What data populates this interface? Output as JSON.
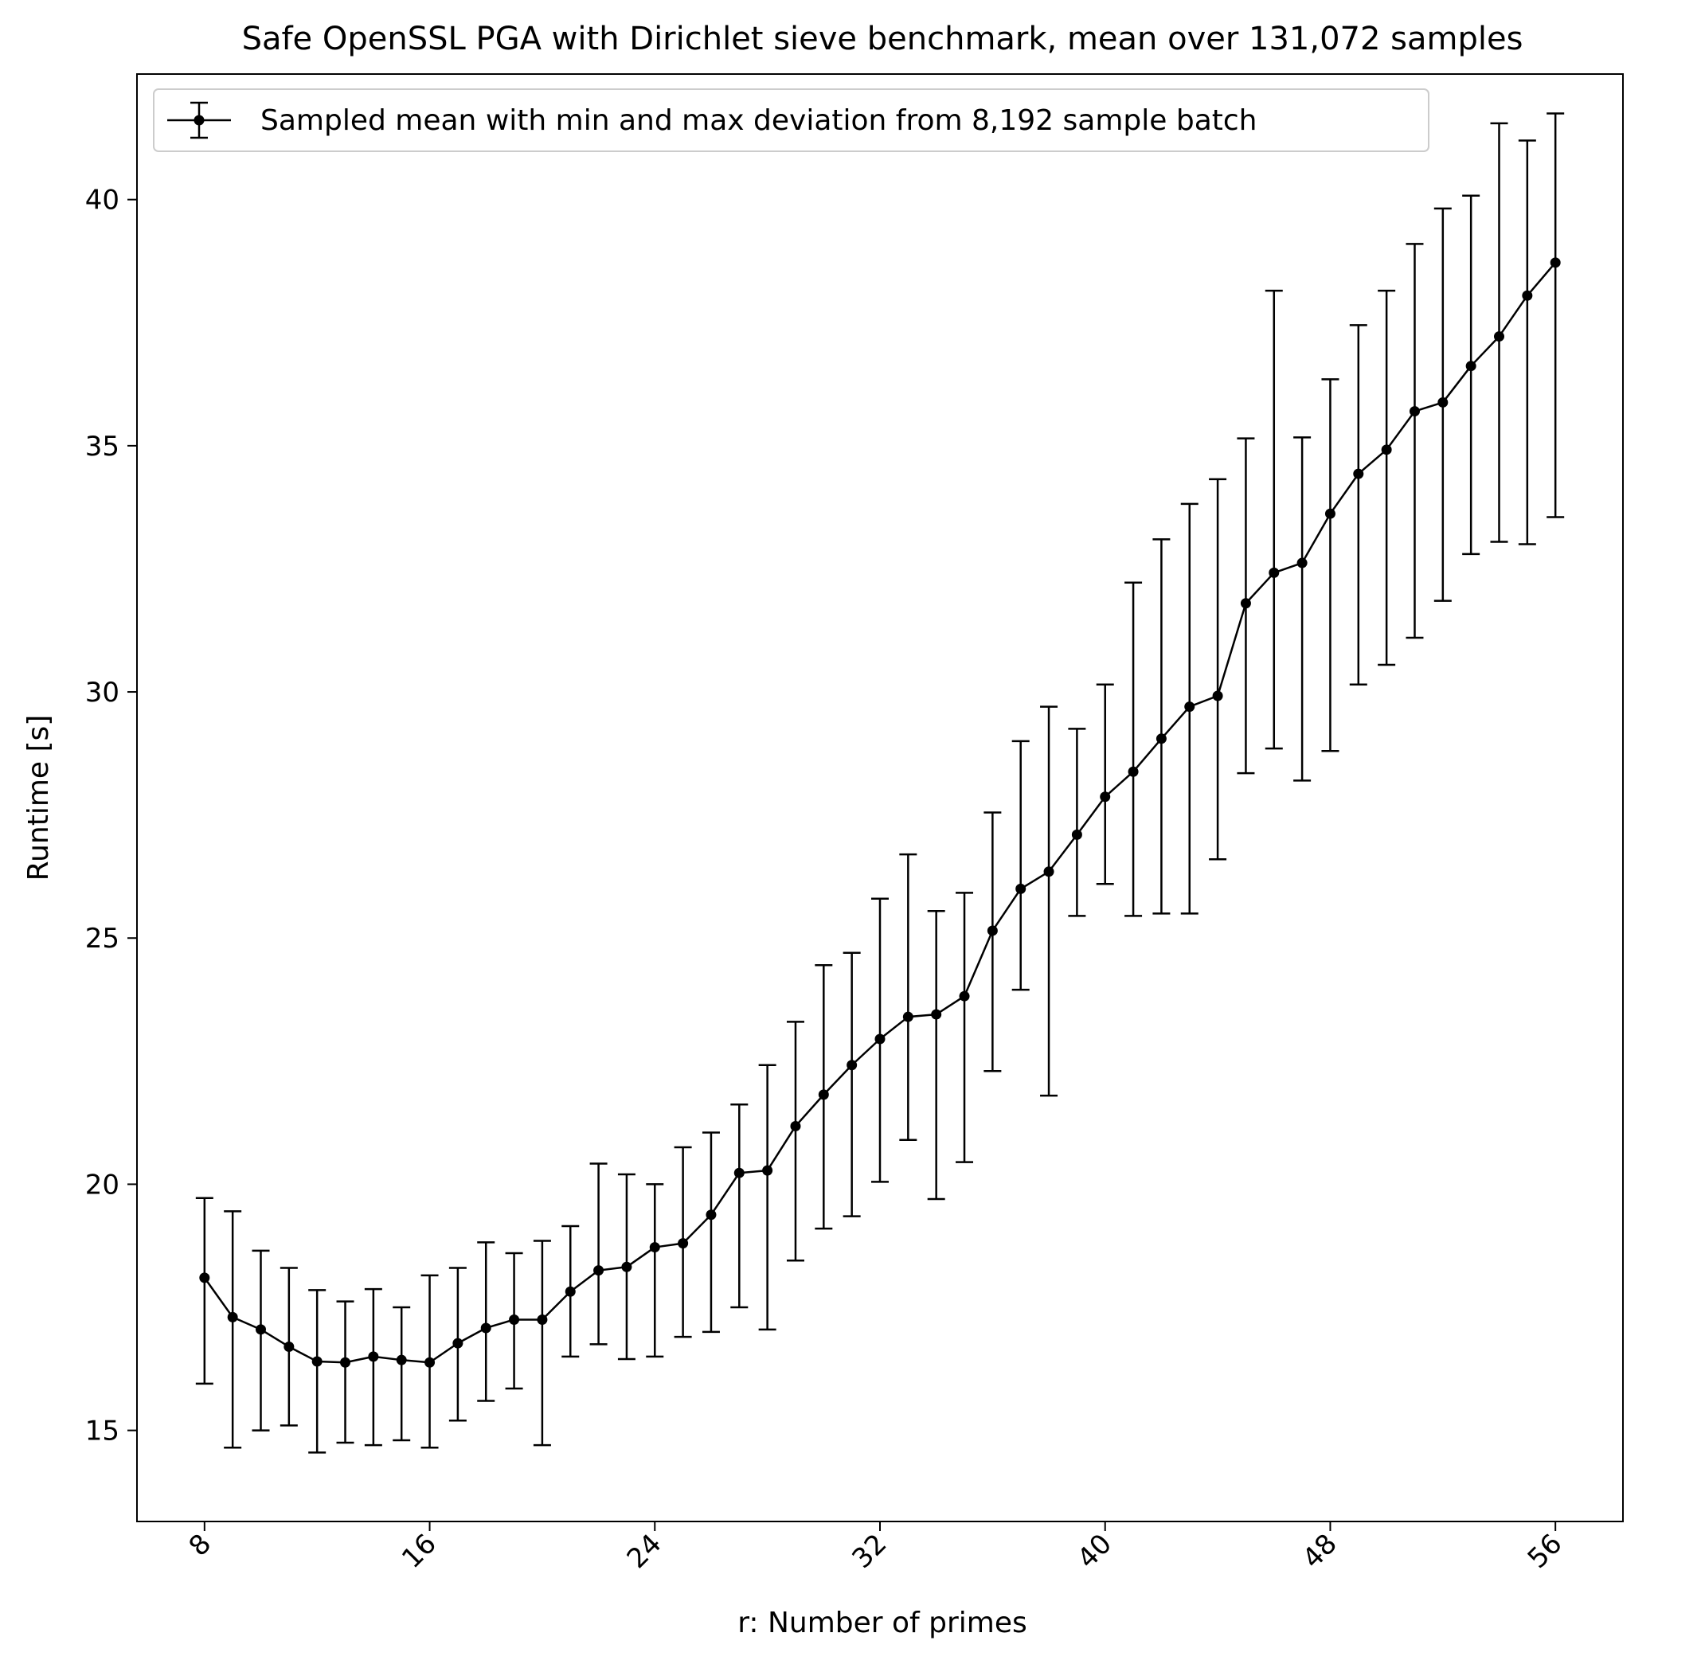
{
  "chart_data": {
    "type": "line",
    "title": "Safe OpenSSL PGA with Dirichlet sieve benchmark, mean over 131,072 samples",
    "xlabel": "r: Number of primes",
    "ylabel": "Runtime [s]",
    "xlim": [
      5.6,
      58.4
    ],
    "ylim": [
      13.15,
      42.55
    ],
    "xticks": [
      8,
      16,
      24,
      32,
      40,
      48,
      56
    ],
    "yticks": [
      15,
      20,
      25,
      30,
      35,
      40
    ],
    "grid": false,
    "legend_position": "top-left",
    "series": [
      {
        "name": "Sampled mean with min and max deviation from 8,192 sample batch",
        "color": "#000000",
        "x": [
          8,
          9,
          10,
          11,
          12,
          13,
          14,
          15,
          16,
          17,
          18,
          19,
          20,
          21,
          22,
          23,
          24,
          25,
          26,
          27,
          28,
          29,
          30,
          31,
          32,
          33,
          34,
          35,
          36,
          37,
          38,
          39,
          40,
          41,
          42,
          43,
          44,
          45,
          46,
          47,
          48,
          49,
          50,
          51,
          52,
          53,
          54,
          55,
          56
        ],
        "mean": [
          18.1,
          17.3,
          17.05,
          16.7,
          16.4,
          16.38,
          16.5,
          16.43,
          16.38,
          16.77,
          17.08,
          17.25,
          17.25,
          17.82,
          18.25,
          18.32,
          18.72,
          18.8,
          19.38,
          20.23,
          20.28,
          21.18,
          21.82,
          22.42,
          22.95,
          23.4,
          23.45,
          23.82,
          25.15,
          26.0,
          26.35,
          27.1,
          27.87,
          28.38,
          29.05,
          29.7,
          29.92,
          31.8,
          32.42,
          32.62,
          33.62,
          34.43,
          34.92,
          35.7,
          35.88,
          36.62,
          37.22,
          38.05,
          38.72
        ],
        "min": [
          15.95,
          14.65,
          15.0,
          15.1,
          14.55,
          14.75,
          14.7,
          14.8,
          14.65,
          15.2,
          15.6,
          15.85,
          14.7,
          16.5,
          16.75,
          16.45,
          16.5,
          16.9,
          17.0,
          17.5,
          17.05,
          18.45,
          19.1,
          19.35,
          20.05,
          20.9,
          19.7,
          20.45,
          22.3,
          23.95,
          21.8,
          25.45,
          26.1,
          25.45,
          25.5,
          25.5,
          26.6,
          28.35,
          28.85,
          28.2,
          28.8,
          30.15,
          30.55,
          31.1,
          31.85,
          32.8,
          33.05,
          33.0,
          33.55
        ],
        "max": [
          19.72,
          19.45,
          18.65,
          18.3,
          17.85,
          17.62,
          17.87,
          17.5,
          18.15,
          18.3,
          18.82,
          18.6,
          18.85,
          19.15,
          20.42,
          20.2,
          20.0,
          20.75,
          21.05,
          21.62,
          22.42,
          23.3,
          24.45,
          24.7,
          25.8,
          26.7,
          25.55,
          25.92,
          27.55,
          29.0,
          29.7,
          29.25,
          30.15,
          32.22,
          33.1,
          33.82,
          34.32,
          35.15,
          38.15,
          35.17,
          36.35,
          37.45,
          38.15,
          39.1,
          39.82,
          40.08,
          41.55,
          41.2,
          41.75
        ]
      }
    ]
  }
}
